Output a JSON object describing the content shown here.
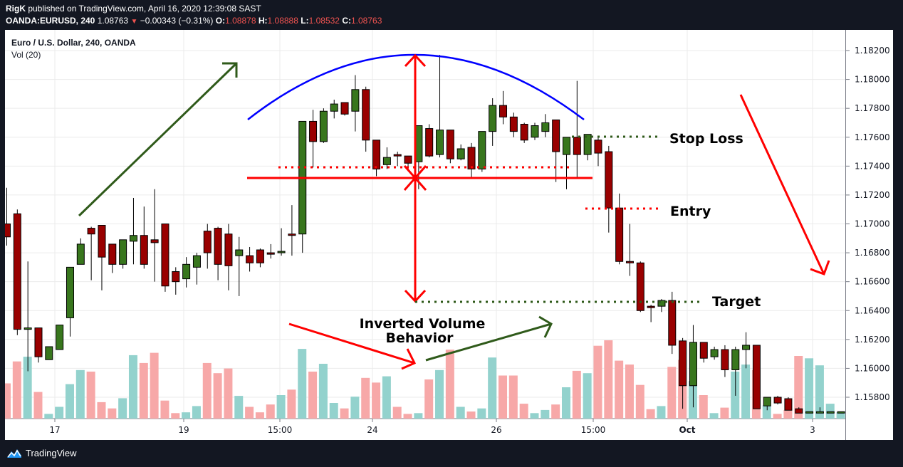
{
  "header": {
    "publisher": "RigK",
    "published_text": " published on TradingView.com, April 16, 2020 12:39:08 SAST",
    "symbol": "OANDA:EURUSD, 240",
    "last": "1.08763",
    "change": "−0.00343 (−0.31%)",
    "open_label": "O:",
    "open": "1.08878",
    "high_label": "H:",
    "high": "1.08888",
    "low_label": "L:",
    "low": "1.08532",
    "close_label": "C:",
    "close": "1.08763"
  },
  "legend": {
    "title": "Euro / U.S. Dollar, 240, OANDA",
    "volume": "Vol (20)"
  },
  "footer": {
    "brand": "TradingView"
  },
  "colors": {
    "up": "#38761d",
    "down": "#990000",
    "vol_up": "#93d2cd",
    "vol_down": "#f7a8a8",
    "grid": "#ebebeb",
    "arc": "#0000ff",
    "annot_red": "#ff0000",
    "annot_green": "#2f5a1a"
  },
  "chart_data": {
    "type": "candlestick",
    "title": "Euro / U.S. Dollar, 240, OANDA",
    "y_ticks": [
      "1.18200",
      "1.18000",
      "1.17800",
      "1.17600",
      "1.17400",
      "1.17200",
      "1.17000",
      "1.16800",
      "1.16600",
      "1.16400",
      "1.16200",
      "1.16000",
      "1.15800"
    ],
    "ylim": [
      1.1571,
      1.183
    ],
    "x_ticks": [
      {
        "label": "17",
        "x": 77,
        "bold": false
      },
      {
        "label": "19",
        "x": 258,
        "bold": false
      },
      {
        "label": "15:00",
        "x": 393,
        "bold": false
      },
      {
        "label": "24",
        "x": 523,
        "bold": false
      },
      {
        "label": "26",
        "x": 697,
        "bold": false
      },
      {
        "label": "15:00",
        "x": 833,
        "bold": false
      },
      {
        "label": "Oct",
        "x": 965,
        "bold": true
      },
      {
        "label": "3",
        "x": 1141,
        "bold": false
      }
    ],
    "candles": [
      {
        "o": 1.17,
        "h": 1.1725,
        "c": 1.1691,
        "l": 1.1685,
        "v": 0.45
      },
      {
        "o": 1.1707,
        "h": 1.171,
        "c": 1.1627,
        "l": 1.1623,
        "v": 0.73
      },
      {
        "o": 1.1627,
        "h": 1.1674,
        "c": 1.1628,
        "l": 1.1598,
        "v": 0.79
      },
      {
        "o": 1.1628,
        "h": 1.1628,
        "c": 1.1608,
        "l": 1.1604,
        "v": 0.34
      },
      {
        "o": 1.1606,
        "h": 1.1611,
        "c": 1.1615,
        "l": 1.1609,
        "v": 0.06
      },
      {
        "o": 1.1613,
        "h": 1.1621,
        "c": 1.163,
        "l": 1.1617,
        "v": 0.15
      },
      {
        "o": 1.1635,
        "h": 1.165,
        "c": 1.167,
        "l": 1.1622,
        "v": 0.44
      },
      {
        "o": 1.1672,
        "h": 1.169,
        "c": 1.1686,
        "l": 1.1673,
        "v": 0.62
      },
      {
        "o": 1.1697,
        "h": 1.1698,
        "c": 1.1693,
        "l": 1.1661,
        "v": 0.6
      },
      {
        "o": 1.1699,
        "h": 1.1699,
        "c": 1.1677,
        "l": 1.1654,
        "v": 0.21
      },
      {
        "o": 1.1686,
        "h": 1.1668,
        "c": 1.1672,
        "l": 1.1666,
        "v": 0.13
      },
      {
        "o": 1.1672,
        "h": 1.1678,
        "c": 1.1689,
        "l": 1.1669,
        "v": 0.26
      },
      {
        "o": 1.1688,
        "h": 1.1718,
        "c": 1.1692,
        "l": 1.1672,
        "v": 0.81
      },
      {
        "o": 1.1692,
        "h": 1.1712,
        "c": 1.1672,
        "l": 1.1669,
        "v": 0.71
      },
      {
        "o": 1.1689,
        "h": 1.1724,
        "c": 1.1687,
        "l": 1.166,
        "v": 0.84
      },
      {
        "o": 1.17,
        "h": 1.1686,
        "c": 1.1657,
        "l": 1.1653,
        "v": 0.23
      },
      {
        "o": 1.1667,
        "h": 1.167,
        "c": 1.166,
        "l": 1.1651,
        "v": 0.07
      },
      {
        "o": 1.1662,
        "h": 1.1677,
        "c": 1.1672,
        "l": 1.1656,
        "v": 0.08
      },
      {
        "o": 1.167,
        "h": 1.168,
        "c": 1.1678,
        "l": 1.1658,
        "v": 0.16
      },
      {
        "o": 1.1695,
        "h": 1.17,
        "c": 1.168,
        "l": 1.1669,
        "v": 0.71
      },
      {
        "o": 1.1697,
        "h": 1.1698,
        "c": 1.1672,
        "l": 1.1661,
        "v": 0.58
      },
      {
        "o": 1.1693,
        "h": 1.17,
        "c": 1.1671,
        "l": 1.1654,
        "v": 0.64
      },
      {
        "o": 1.1678,
        "h": 1.1691,
        "c": 1.1682,
        "l": 1.165,
        "v": 0.29
      },
      {
        "o": 1.1678,
        "h": 1.1684,
        "c": 1.1673,
        "l": 1.1667,
        "v": 0.15
      },
      {
        "o": 1.1682,
        "h": 1.1683,
        "c": 1.1673,
        "l": 1.167,
        "v": 0.08
      },
      {
        "o": 1.168,
        "h": 1.1686,
        "c": 1.1679,
        "l": 1.1676,
        "v": 0.18
      },
      {
        "o": 1.168,
        "h": 1.1697,
        "c": 1.1681,
        "l": 1.1678,
        "v": 0.3
      },
      {
        "o": 1.1693,
        "h": 1.1713,
        "c": 1.1692,
        "l": 1.1678,
        "v": 0.37
      },
      {
        "o": 1.1693,
        "h": 1.1771,
        "c": 1.1771,
        "l": 1.168,
        "v": 0.89
      },
      {
        "o": 1.1771,
        "h": 1.1779,
        "c": 1.1757,
        "l": 1.1739,
        "v": 0.6
      },
      {
        "o": 1.1757,
        "h": 1.178,
        "c": 1.1778,
        "l": 1.1756,
        "v": 0.7
      },
      {
        "o": 1.1778,
        "h": 1.1786,
        "c": 1.1783,
        "l": 1.1773,
        "v": 0.2
      },
      {
        "o": 1.1784,
        "h": 1.1783,
        "c": 1.1776,
        "l": 1.1775,
        "v": 0.13
      },
      {
        "o": 1.1778,
        "h": 1.1803,
        "c": 1.1793,
        "l": 1.1764,
        "v": 0.28
      },
      {
        "o": 1.1793,
        "h": 1.1795,
        "c": 1.1758,
        "l": 1.175,
        "v": 0.52
      },
      {
        "o": 1.1758,
        "h": 1.1758,
        "c": 1.1738,
        "l": 1.1733,
        "v": 0.46
      },
      {
        "o": 1.1741,
        "h": 1.1753,
        "c": 1.1746,
        "l": 1.1738,
        "v": 0.54
      },
      {
        "o": 1.1748,
        "h": 1.175,
        "c": 1.1747,
        "l": 1.174,
        "v": 0.15
      },
      {
        "o": 1.1747,
        "h": 1.1747,
        "c": 1.1742,
        "l": 1.1737,
        "v": 0.06
      },
      {
        "o": 1.1743,
        "h": 1.1768,
        "c": 1.1768,
        "l": 1.1724,
        "v": 0.07
      },
      {
        "o": 1.1766,
        "h": 1.1769,
        "c": 1.1747,
        "l": 1.1746,
        "v": 0.5
      },
      {
        "o": 1.1748,
        "h": 1.1817,
        "c": 1.1765,
        "l": 1.1746,
        "v": 0.62
      },
      {
        "o": 1.1765,
        "h": 1.1765,
        "c": 1.1745,
        "l": 1.1742,
        "v": 0.88
      },
      {
        "o": 1.1745,
        "h": 1.1755,
        "c": 1.1752,
        "l": 1.1744,
        "v": 0.15
      },
      {
        "o": 1.1753,
        "h": 1.1756,
        "c": 1.1738,
        "l": 1.1732,
        "v": 0.09
      },
      {
        "o": 1.1738,
        "h": 1.1763,
        "c": 1.1764,
        "l": 1.1736,
        "v": 0.13
      },
      {
        "o": 1.1764,
        "h": 1.1787,
        "c": 1.1782,
        "l": 1.1754,
        "v": 0.78
      },
      {
        "o": 1.1782,
        "h": 1.1792,
        "c": 1.1774,
        "l": 1.1769,
        "v": 0.55
      },
      {
        "o": 1.1774,
        "h": 1.1777,
        "c": 1.1764,
        "l": 1.176,
        "v": 0.55
      },
      {
        "o": 1.1769,
        "h": 1.177,
        "c": 1.1758,
        "l": 1.1756,
        "v": 0.19
      },
      {
        "o": 1.176,
        "h": 1.177,
        "c": 1.1768,
        "l": 1.1758,
        "v": 0.07
      },
      {
        "o": 1.1764,
        "h": 1.1776,
        "c": 1.177,
        "l": 1.176,
        "v": 0.11
      },
      {
        "o": 1.1772,
        "h": 1.1771,
        "c": 1.175,
        "l": 1.1729,
        "v": 0.18
      },
      {
        "o": 1.1748,
        "h": 1.1758,
        "c": 1.176,
        "l": 1.1724,
        "v": 0.4
      },
      {
        "o": 1.176,
        "h": 1.1799,
        "c": 1.1748,
        "l": 1.1732,
        "v": 0.61
      },
      {
        "o": 1.1748,
        "h": 1.1759,
        "c": 1.1762,
        "l": 1.1744,
        "v": 0.58
      },
      {
        "o": 1.1758,
        "h": 1.176,
        "c": 1.1749,
        "l": 1.174,
        "v": 0.93
      },
      {
        "o": 1.175,
        "h": 1.1754,
        "c": 1.1711,
        "l": 1.1694,
        "v": 1.0
      },
      {
        "o": 1.1711,
        "h": 1.1721,
        "c": 1.1674,
        "l": 1.1672,
        "v": 0.74
      },
      {
        "o": 1.1674,
        "h": 1.17,
        "c": 1.1673,
        "l": 1.1664,
        "v": 0.69
      },
      {
        "o": 1.1673,
        "h": 1.1674,
        "c": 1.164,
        "l": 1.1639,
        "v": 0.43
      },
      {
        "o": 1.1643,
        "h": 1.1644,
        "c": 1.1642,
        "l": 1.1632,
        "v": 0.12
      },
      {
        "o": 1.1643,
        "h": 1.1648,
        "c": 1.1647,
        "l": 1.1639,
        "v": 0.16
      },
      {
        "o": 1.1647,
        "h": 1.1653,
        "c": 1.1616,
        "l": 1.161,
        "v": 0.66
      },
      {
        "o": 1.1619,
        "h": 1.1621,
        "c": 1.1588,
        "l": 1.1572,
        "v": 0.75
      },
      {
        "o": 1.1588,
        "h": 1.163,
        "c": 1.1618,
        "l": 1.1573,
        "v": 0.48
      },
      {
        "o": 1.1618,
        "h": 1.1618,
        "c": 1.1607,
        "l": 1.1604,
        "v": 0.3
      },
      {
        "o": 1.1608,
        "h": 1.1615,
        "c": 1.1613,
        "l": 1.1606,
        "v": 0.07
      },
      {
        "o": 1.1613,
        "h": 1.1616,
        "c": 1.1599,
        "l": 1.1594,
        "v": 0.14
      },
      {
        "o": 1.1599,
        "h": 1.1615,
        "c": 1.1613,
        "l": 1.1581,
        "v": 0.6
      },
      {
        "o": 1.1613,
        "h": 1.1625,
        "c": 1.1616,
        "l": 1.16,
        "v": 0.69
      },
      {
        "o": 1.1616,
        "h": 1.1616,
        "c": 1.1572,
        "l": 1.1572,
        "v": 0.62
      },
      {
        "o": 1.1574,
        "h": 1.158,
        "c": 1.158,
        "l": 1.1571,
        "v": 0.17
      },
      {
        "o": 1.158,
        "h": 1.1581,
        "c": 1.1576,
        "l": 1.1575,
        "v": 0.06
      },
      {
        "o": 1.1579,
        "h": 1.158,
        "c": 1.1571,
        "l": 1.1571,
        "v": 0.11
      },
      {
        "o": 1.1572,
        "h": 1.1573,
        "c": 1.1569,
        "l": 1.1569,
        "v": 0.8
      },
      {
        "o": 1.157,
        "h": 1.157,
        "c": 1.157,
        "l": 1.157,
        "v": 0.77
      },
      {
        "o": 1.157,
        "h": 1.1573,
        "c": 1.157,
        "l": 1.157,
        "v": 0.68
      },
      {
        "o": 1.157,
        "h": 1.157,
        "c": 1.157,
        "l": 1.157,
        "v": 0.19
      },
      {
        "o": 1.157,
        "h": 1.157,
        "c": 1.157,
        "l": 1.157,
        "v": 0.08
      },
      {
        "o": 1.1571,
        "h": 1.1583,
        "c": 1.158,
        "l": 1.1571,
        "v": 0.23
      },
      {
        "o": 1.158,
        "h": 1.1596,
        "c": 1.157,
        "l": 1.157,
        "v": 0.36
      },
      {
        "o": 1.1579,
        "h": 1.1594,
        "c": 1.1574,
        "l": 1.157,
        "v": 0.73
      },
      {
        "o": 1.1575,
        "h": 1.1576,
        "c": 1.1569,
        "l": 1.1569,
        "v": 0.73
      }
    ],
    "volume_label": "Vol (20)"
  },
  "annotations": {
    "stop_loss": "Stop Loss",
    "entry": "Entry",
    "target": "Target",
    "volume_note_line1": "Inverted Volume",
    "volume_note_line2": "Behavior"
  }
}
